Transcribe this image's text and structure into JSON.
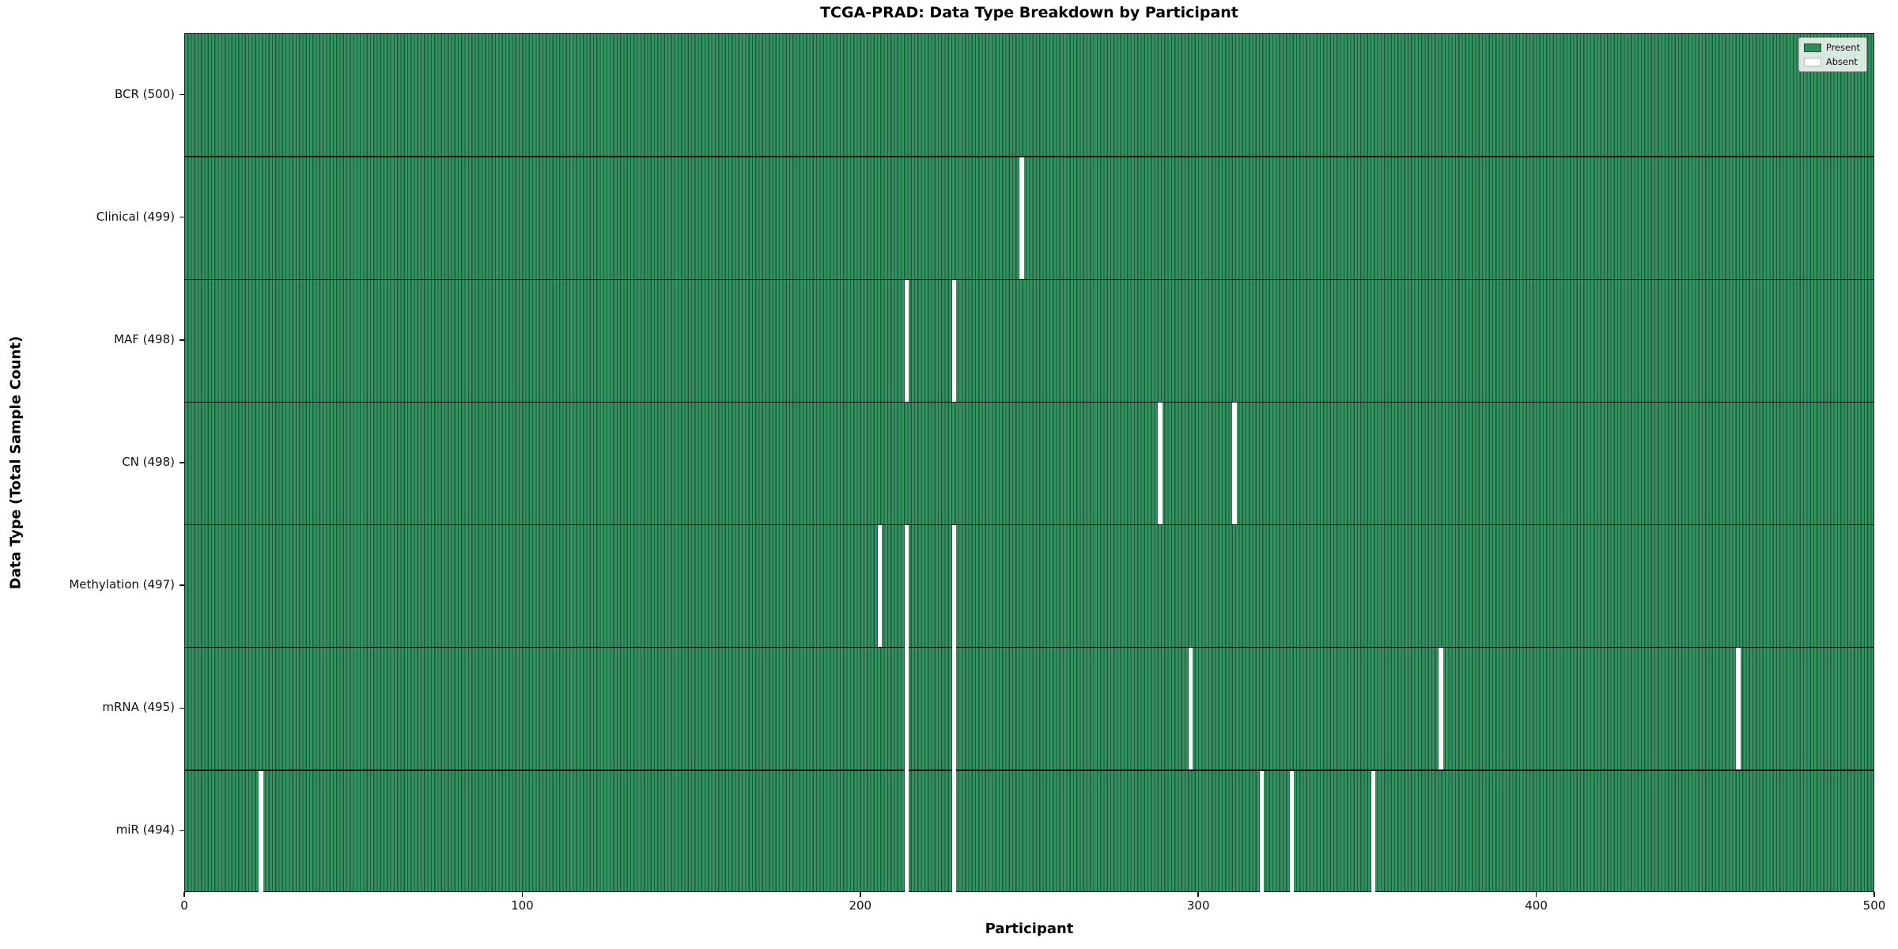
{
  "title": "TCGA-PRAD: Data Type Breakdown by Participant",
  "axes": {
    "x_label": "Participant",
    "y_label": "Data Type (Total Sample Count)",
    "x_ticks": [
      0,
      100,
      200,
      300,
      400,
      500
    ],
    "x_range": [
      0,
      500
    ]
  },
  "legend": {
    "entries": [
      {
        "label": "Present",
        "color": "#2f8c58"
      },
      {
        "label": "Absent",
        "color": "#ffffff"
      }
    ]
  },
  "colors": {
    "present_fill": "#349261",
    "present_edge": "#1e5a3a",
    "absent": "#ffffff",
    "divider": "#141414",
    "background": "#ffffff"
  },
  "chart_data": {
    "type": "heatmap",
    "title": "TCGA-PRAD: Data Type Breakdown by Participant",
    "xlabel": "Participant",
    "ylabel": "Data Type (Total Sample Count)",
    "x_range": [
      0,
      500
    ],
    "n_participants": 500,
    "legend": [
      "Present",
      "Absent"
    ],
    "legend_position": "upper right",
    "grid": false,
    "rows": [
      {
        "label": "BCR (500)",
        "data_type": "BCR",
        "total": 500,
        "absent_participants": []
      },
      {
        "label": "Clinical (499)",
        "data_type": "Clinical",
        "total": 499,
        "absent_participants": [
          247
        ]
      },
      {
        "label": "MAF (498)",
        "data_type": "MAF",
        "total": 498,
        "absent_participants": [
          213,
          227
        ]
      },
      {
        "label": "CN (498)",
        "data_type": "CN",
        "total": 498,
        "absent_participants": [
          288,
          310
        ]
      },
      {
        "label": "Methylation (497)",
        "data_type": "Methylation",
        "total": 497,
        "absent_participants": [
          205,
          213,
          227
        ]
      },
      {
        "label": "mRNA (495)",
        "data_type": "mRNA",
        "total": 495,
        "absent_participants": [
          213,
          227,
          297,
          371,
          459
        ]
      },
      {
        "label": "miR (494)",
        "data_type": "miR",
        "total": 494,
        "absent_participants": [
          22,
          213,
          227,
          318,
          327,
          351
        ]
      }
    ]
  }
}
